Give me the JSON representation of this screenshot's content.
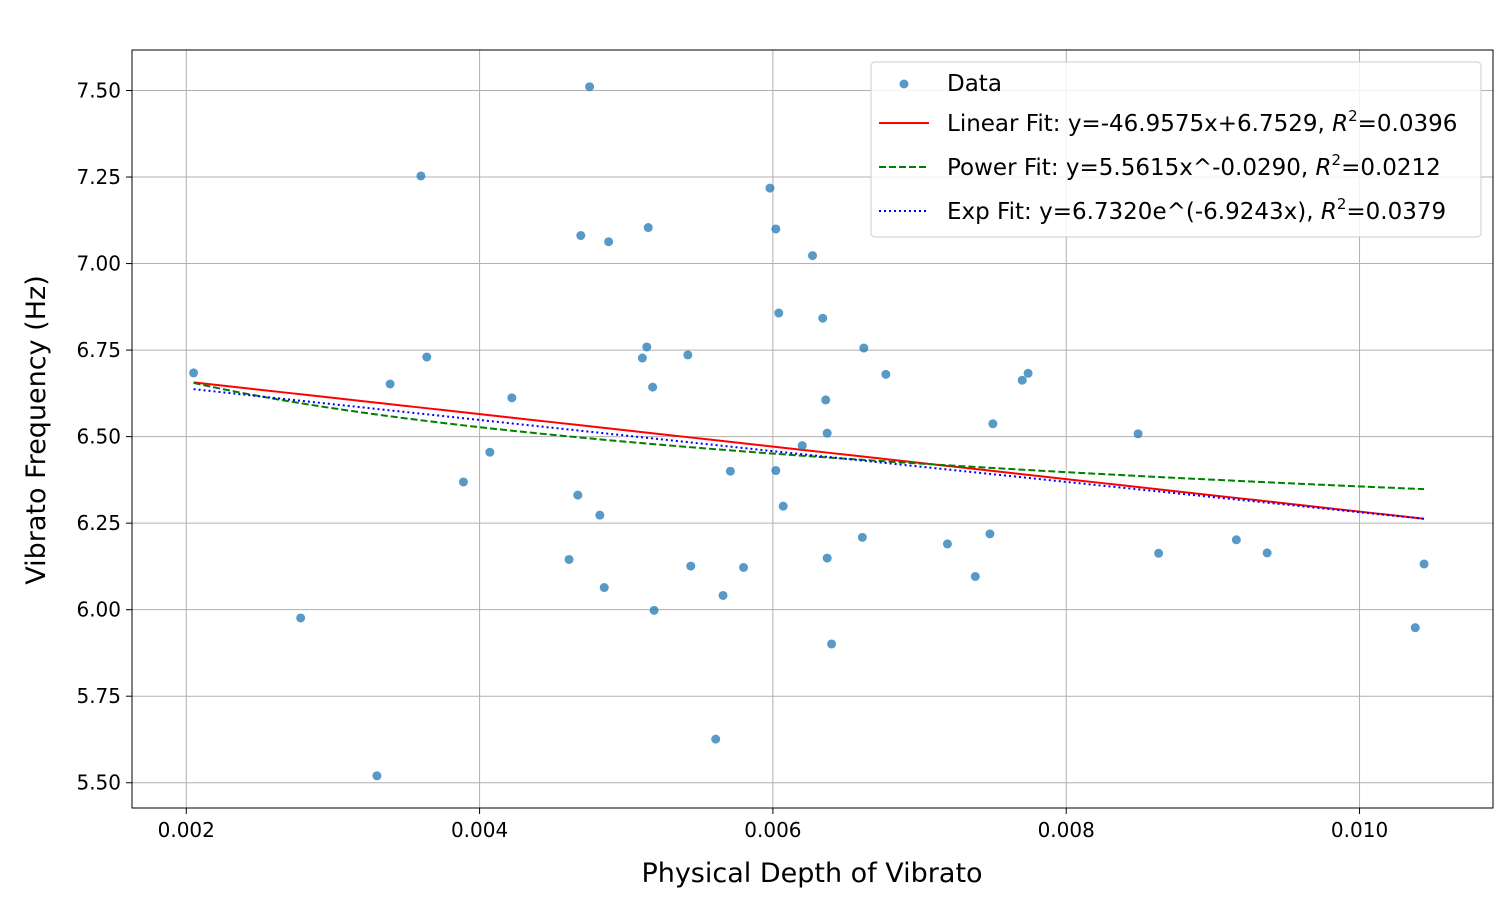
{
  "chart_data": {
    "type": "scatter",
    "xlabel": "Physical Depth of Vibrato",
    "ylabel": "Vibrato Frequency (Hz)",
    "xlim": [
      0.00163,
      0.01091
    ],
    "ylim": [
      5.427,
      7.617
    ],
    "x_ticks": [
      0.002,
      0.004,
      0.006,
      0.008,
      0.01
    ],
    "x_tick_labels": [
      "0.002",
      "0.004",
      "0.006",
      "0.008",
      "0.010"
    ],
    "y_ticks": [
      5.5,
      5.75,
      6.0,
      6.25,
      6.5,
      6.75,
      7.0,
      7.25,
      7.5
    ],
    "y_tick_labels": [
      "5.50",
      "5.75",
      "6.00",
      "6.25",
      "6.50",
      "6.75",
      "7.00",
      "7.25",
      "7.50"
    ],
    "grid": true,
    "legend_position": "top-right",
    "series": [
      {
        "name": "Data",
        "kind": "scatter",
        "color": "#1f77b4",
        "points": [
          [
            0.00205,
            6.684
          ],
          [
            0.00278,
            5.976
          ],
          [
            0.0033,
            5.52
          ],
          [
            0.00339,
            6.652
          ],
          [
            0.0036,
            7.253
          ],
          [
            0.00364,
            6.73
          ],
          [
            0.00389,
            6.369
          ],
          [
            0.00407,
            6.455
          ],
          [
            0.00422,
            6.612
          ],
          [
            0.00461,
            6.145
          ],
          [
            0.00467,
            6.331
          ],
          [
            0.00469,
            7.081
          ],
          [
            0.00475,
            7.511
          ],
          [
            0.00482,
            6.273
          ],
          [
            0.00485,
            6.064
          ],
          [
            0.00488,
            7.063
          ],
          [
            0.00511,
            6.727
          ],
          [
            0.00514,
            6.759
          ],
          [
            0.00515,
            7.104
          ],
          [
            0.00518,
            6.643
          ],
          [
            0.00519,
            5.998
          ],
          [
            0.00542,
            6.736
          ],
          [
            0.00544,
            6.126
          ],
          [
            0.00561,
            5.626
          ],
          [
            0.00566,
            6.041
          ],
          [
            0.00571,
            6.4
          ],
          [
            0.0058,
            6.122
          ],
          [
            0.00598,
            7.218
          ],
          [
            0.00602,
            6.402
          ],
          [
            0.00602,
            7.1
          ],
          [
            0.00604,
            6.857
          ],
          [
            0.00607,
            6.299
          ],
          [
            0.0062,
            6.474
          ],
          [
            0.00627,
            7.023
          ],
          [
            0.00634,
            6.842
          ],
          [
            0.00636,
            6.606
          ],
          [
            0.00637,
            6.149
          ],
          [
            0.00637,
            6.51
          ],
          [
            0.0064,
            5.901
          ],
          [
            0.00661,
            6.209
          ],
          [
            0.00662,
            6.756
          ],
          [
            0.00677,
            6.68
          ],
          [
            0.00719,
            6.19
          ],
          [
            0.00738,
            6.096
          ],
          [
            0.00748,
            6.219
          ],
          [
            0.0075,
            6.537
          ],
          [
            0.0077,
            6.663
          ],
          [
            0.00774,
            6.683
          ],
          [
            0.00849,
            6.508
          ],
          [
            0.00863,
            6.163
          ],
          [
            0.00916,
            6.202
          ],
          [
            0.00937,
            6.164
          ],
          [
            0.01038,
            5.948
          ],
          [
            0.01044,
            6.132
          ]
        ]
      },
      {
        "name": "Linear Fit: y=-46.9575x+6.7529, R²=0.0396",
        "kind": "line",
        "color": "#ff0000",
        "dash": "solid",
        "model": "linear",
        "params": {
          "a": -46.9575,
          "b": 6.7529
        }
      },
      {
        "name": "Power Fit: y=5.5615x^-0.0290, R²=0.0212",
        "kind": "line",
        "color": "#008000",
        "dash": "dashed",
        "model": "power",
        "params": {
          "a": 5.5615,
          "b": -0.029
        }
      },
      {
        "name": "Exp Fit: y=6.7320e^(-6.9243x), R²=0.0379",
        "kind": "line",
        "color": "#0000ff",
        "dash": "dotted",
        "model": "exp",
        "params": {
          "a": 6.732,
          "b": -6.9243
        }
      }
    ],
    "fit_x_range": [
      0.00205,
      0.01044
    ]
  },
  "legend": {
    "data": "Data",
    "linear_prefix": "Linear Fit: y=-46.9575x+6.7529, ",
    "linear_r2": "=0.0396",
    "power_prefix": "Power Fit: y=5.5615x^-0.0290, ",
    "power_r2": "=0.0212",
    "exp_prefix": "Exp Fit: y=6.7320e^(-6.9243x), ",
    "exp_r2": "=0.0379",
    "r_symbol": "R",
    "r_exponent": "2"
  }
}
